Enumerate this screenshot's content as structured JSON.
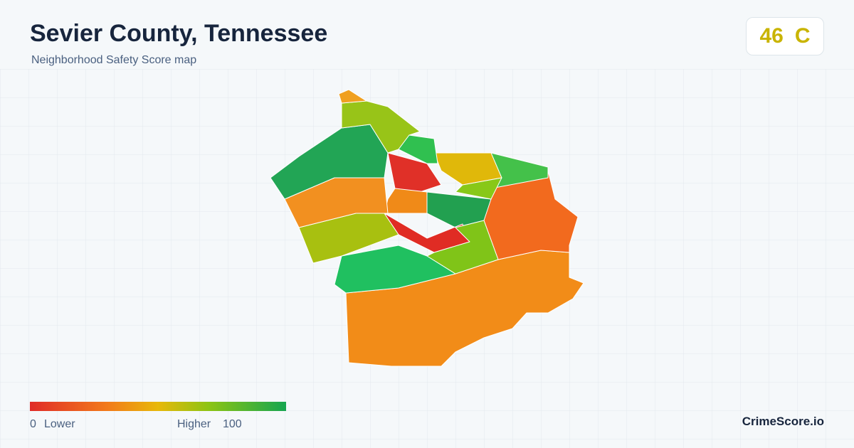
{
  "header": {
    "title": "Sevier County, Tennessee",
    "subtitle": "Neighborhood Safety Score map"
  },
  "score": {
    "value": "46",
    "grade": "C"
  },
  "legend": {
    "min": 0,
    "min_label": "Lower",
    "max_label": "Higher",
    "max": 100
  },
  "brand": "CrimeScore.io"
}
